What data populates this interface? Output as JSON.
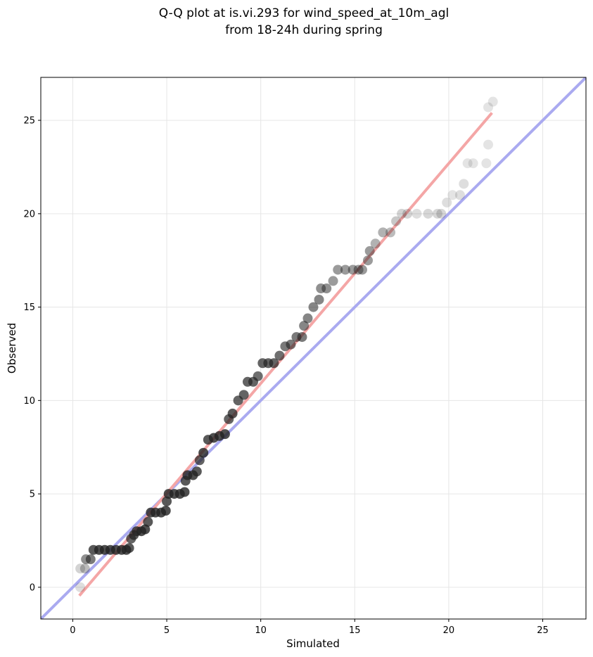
{
  "chart_data": {
    "type": "scatter",
    "title_lines": [
      "Q-Q plot at is.vi.293 for wind_speed_at_10m_agl",
      "from 18-24h during spring"
    ],
    "xlabel": "Simulated",
    "ylabel": "Observed",
    "xlim": [
      -1.7,
      27.3
    ],
    "ylim": [
      -1.7,
      27.3
    ],
    "xticks": [
      0,
      5,
      10,
      15,
      20,
      25
    ],
    "yticks": [
      0,
      5,
      10,
      15,
      20,
      25
    ],
    "xtick_labels": [
      "0",
      "5",
      "10",
      "15",
      "20",
      "25"
    ],
    "ytick_labels": [
      "0",
      "5",
      "10",
      "15",
      "20",
      "25"
    ],
    "grid": true,
    "points_color": "#222222",
    "fit_line": {
      "color": "#f4a6a6",
      "x": [
        0.35,
        22.3
      ],
      "y": [
        -0.45,
        25.4
      ]
    },
    "identity_line": {
      "color": "#aaaaf0"
    },
    "points": [
      [
        0.4,
        0.0,
        0.15
      ],
      [
        0.4,
        1.0,
        0.2
      ],
      [
        0.65,
        1.0,
        0.3
      ],
      [
        0.7,
        1.5,
        0.5
      ],
      [
        0.95,
        1.5,
        0.6
      ],
      [
        1.1,
        2.0,
        0.75
      ],
      [
        1.4,
        2.0,
        0.8
      ],
      [
        1.7,
        2.0,
        0.8
      ],
      [
        2.0,
        2.0,
        0.8
      ],
      [
        2.3,
        2.0,
        0.8
      ],
      [
        2.6,
        2.0,
        0.8
      ],
      [
        2.85,
        2.0,
        0.8
      ],
      [
        3.0,
        2.1,
        0.75
      ],
      [
        3.1,
        2.6,
        0.7
      ],
      [
        3.25,
        2.8,
        0.75
      ],
      [
        3.4,
        3.0,
        0.8
      ],
      [
        3.65,
        3.0,
        0.8
      ],
      [
        3.85,
        3.1,
        0.8
      ],
      [
        4.0,
        3.5,
        0.75
      ],
      [
        4.15,
        4.0,
        0.8
      ],
      [
        4.4,
        4.0,
        0.8
      ],
      [
        4.7,
        4.0,
        0.8
      ],
      [
        4.95,
        4.1,
        0.8
      ],
      [
        5.0,
        4.6,
        0.75
      ],
      [
        5.1,
        5.0,
        0.8
      ],
      [
        5.4,
        5.0,
        0.8
      ],
      [
        5.7,
        5.0,
        0.8
      ],
      [
        5.95,
        5.1,
        0.8
      ],
      [
        6.0,
        5.7,
        0.75
      ],
      [
        6.1,
        6.0,
        0.8
      ],
      [
        6.4,
        6.0,
        0.8
      ],
      [
        6.6,
        6.2,
        0.75
      ],
      [
        6.75,
        6.8,
        0.7
      ],
      [
        6.95,
        7.2,
        0.8
      ],
      [
        7.2,
        7.9,
        0.75
      ],
      [
        7.5,
        8.0,
        0.8
      ],
      [
        7.8,
        8.1,
        0.8
      ],
      [
        8.1,
        8.2,
        0.8
      ],
      [
        8.3,
        9.0,
        0.7
      ],
      [
        8.5,
        9.3,
        0.75
      ],
      [
        8.8,
        10.0,
        0.7
      ],
      [
        9.1,
        10.3,
        0.7
      ],
      [
        9.3,
        11.0,
        0.7
      ],
      [
        9.6,
        11.0,
        0.7
      ],
      [
        9.85,
        11.3,
        0.65
      ],
      [
        10.1,
        12.0,
        0.7
      ],
      [
        10.4,
        12.0,
        0.7
      ],
      [
        10.7,
        12.0,
        0.7
      ],
      [
        11.0,
        12.4,
        0.65
      ],
      [
        11.3,
        12.9,
        0.6
      ],
      [
        11.6,
        13.0,
        0.6
      ],
      [
        11.9,
        13.4,
        0.6
      ],
      [
        12.2,
        13.4,
        0.6
      ],
      [
        12.3,
        14.0,
        0.55
      ],
      [
        12.5,
        14.4,
        0.55
      ],
      [
        12.8,
        15.0,
        0.55
      ],
      [
        13.1,
        15.4,
        0.55
      ],
      [
        13.2,
        16.0,
        0.5
      ],
      [
        13.5,
        16.0,
        0.5
      ],
      [
        13.85,
        16.4,
        0.45
      ],
      [
        14.1,
        17.0,
        0.45
      ],
      [
        14.5,
        17.0,
        0.45
      ],
      [
        14.9,
        17.0,
        0.45
      ],
      [
        15.2,
        17.0,
        0.45
      ],
      [
        15.4,
        17.0,
        0.45
      ],
      [
        15.7,
        17.5,
        0.45
      ],
      [
        15.8,
        18.0,
        0.45
      ],
      [
        16.1,
        18.4,
        0.35
      ],
      [
        16.5,
        19.0,
        0.35
      ],
      [
        16.9,
        19.0,
        0.3
      ],
      [
        17.2,
        19.6,
        0.25
      ],
      [
        17.5,
        20.0,
        0.2
      ],
      [
        17.8,
        20.0,
        0.2
      ],
      [
        18.3,
        20.0,
        0.15
      ],
      [
        18.9,
        20.0,
        0.18
      ],
      [
        19.4,
        20.0,
        0.18
      ],
      [
        19.6,
        20.0,
        0.18
      ],
      [
        19.9,
        20.6,
        0.15
      ],
      [
        20.2,
        21.0,
        0.12
      ],
      [
        20.6,
        21.0,
        0.15
      ],
      [
        20.8,
        21.6,
        0.15
      ],
      [
        21.0,
        22.7,
        0.12
      ],
      [
        21.3,
        22.7,
        0.12
      ],
      [
        22.0,
        22.7,
        0.12
      ],
      [
        22.1,
        23.7,
        0.12
      ],
      [
        22.1,
        25.7,
        0.12
      ],
      [
        22.35,
        26.0,
        0.12
      ]
    ]
  }
}
